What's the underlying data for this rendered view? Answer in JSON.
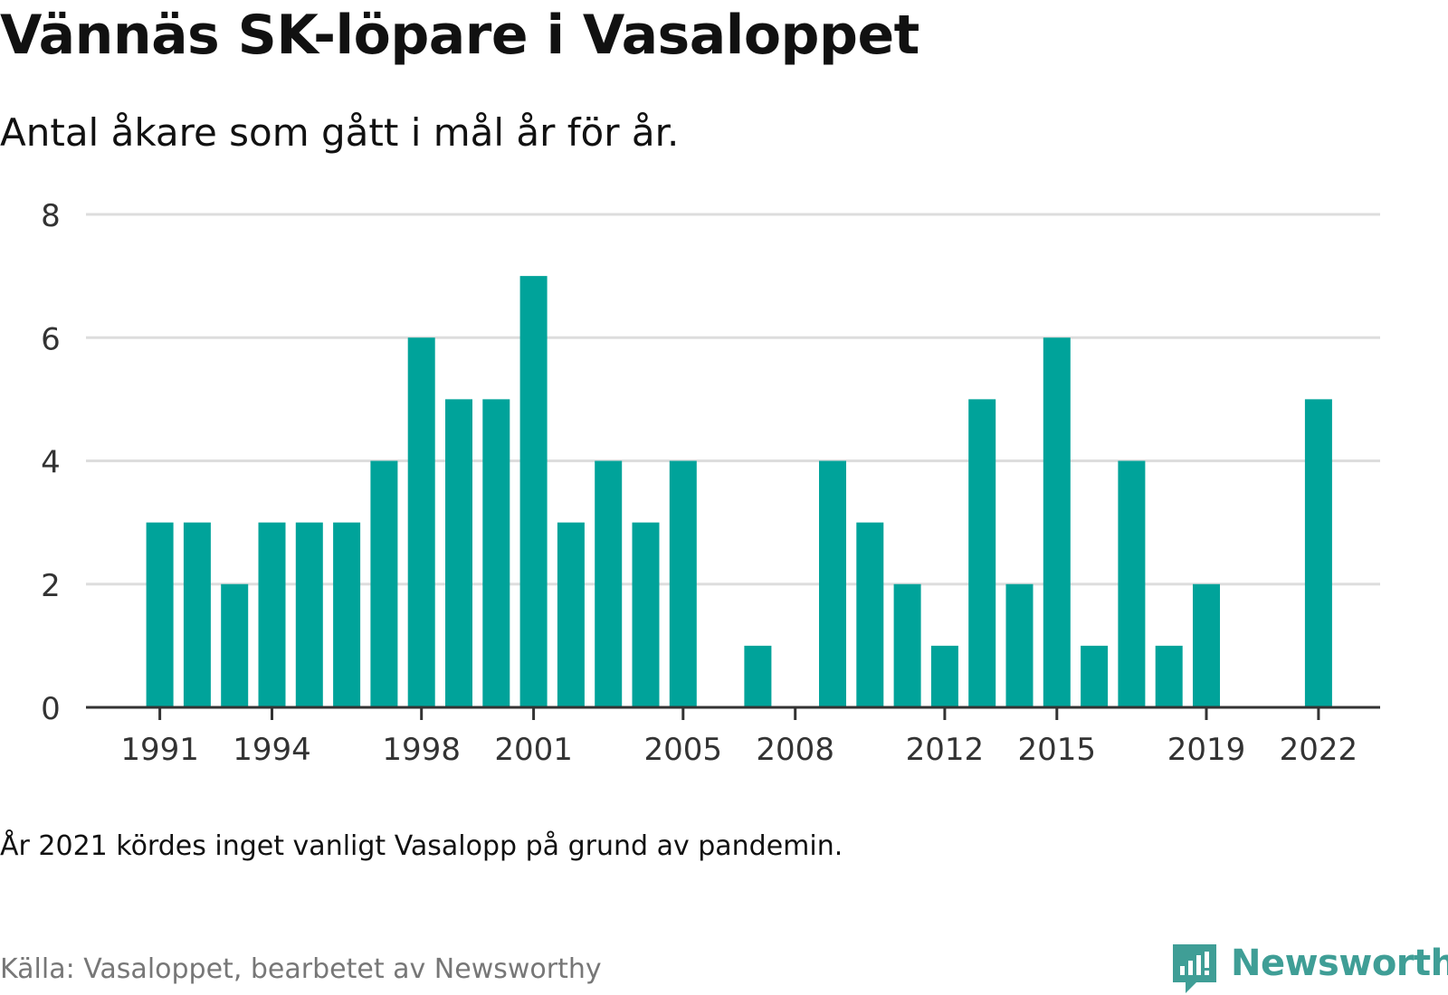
{
  "title": "Vännäs SK-löpare i Vasaloppet",
  "subtitle": "Antal åkare som gått i mål år för år.",
  "note": "År 2021 kördes inget vanligt Vasalopp på grund av pandemin.",
  "source": "Källa: Vasaloppet, bearbetet av Newsworthy",
  "brand": {
    "name": "Newsworthy",
    "color": "#3f9e96",
    "icon": "newsworthy-logo-icon"
  },
  "chart_data": {
    "type": "bar",
    "color": "#00a39a",
    "gridline_color": "#dddddd",
    "baseline_color": "#333333",
    "grid": true,
    "x": [
      1991,
      1992,
      1993,
      1994,
      1995,
      1996,
      1997,
      1998,
      1999,
      2000,
      2001,
      2002,
      2003,
      2004,
      2005,
      2006,
      2007,
      2008,
      2009,
      2010,
      2011,
      2012,
      2013,
      2014,
      2015,
      2016,
      2017,
      2018,
      2019,
      2020,
      2021,
      2022
    ],
    "values": [
      3,
      3,
      2,
      3,
      3,
      3,
      4,
      6,
      5,
      5,
      7,
      3,
      4,
      3,
      4,
      0,
      1,
      0,
      4,
      3,
      2,
      1,
      5,
      2,
      6,
      1,
      4,
      1,
      2,
      0,
      0,
      5
    ],
    "xticks": [
      "1991",
      "1994",
      "1998",
      "2001",
      "2005",
      "2008",
      "2012",
      "2015",
      "2019",
      "2022"
    ],
    "yticks": [
      "0",
      "2",
      "4",
      "6",
      "8"
    ],
    "ylim": [
      0,
      8
    ],
    "xlabel": "",
    "ylabel": ""
  }
}
